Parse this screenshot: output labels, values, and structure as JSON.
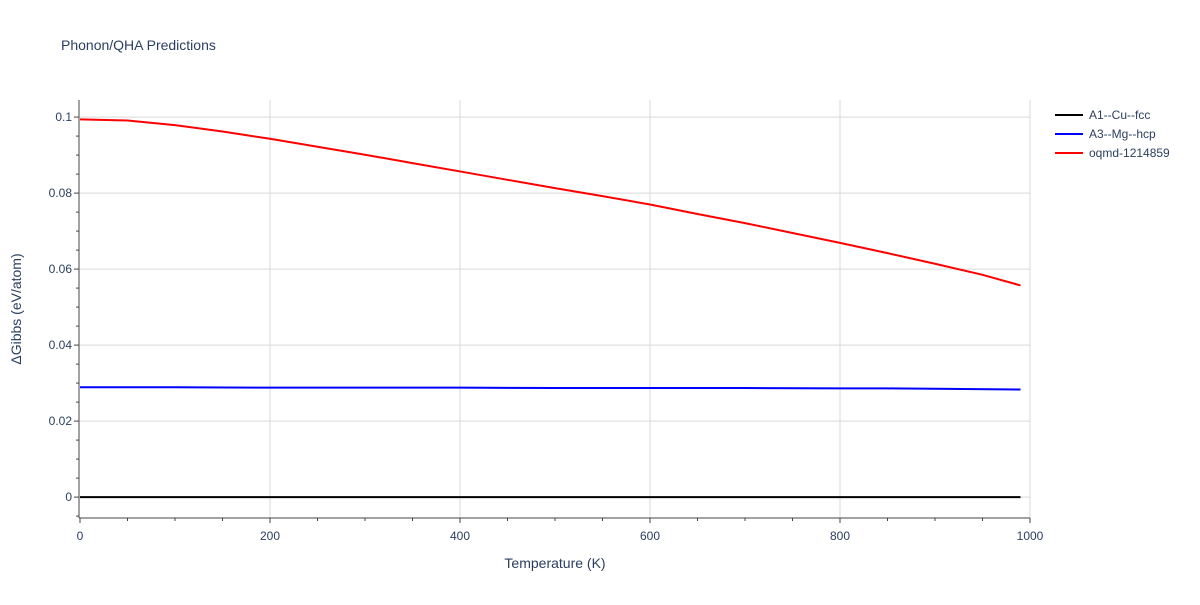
{
  "chart_data": {
    "type": "line",
    "title": "Phonon/QHA Predictions",
    "xlabel": "Temperature (K)",
    "ylabel": "ΔGibbs (eV/atom)",
    "xlim": [
      0,
      1000
    ],
    "ylim": [
      -0.0055,
      0.1045
    ],
    "x_ticks": [
      0,
      200,
      400,
      600,
      800,
      1000
    ],
    "x_tick_labels": [
      "0",
      "200",
      "400",
      "600",
      "800",
      "1000"
    ],
    "y_ticks": [
      0,
      0.02,
      0.04,
      0.06,
      0.08,
      0.1
    ],
    "y_tick_labels": [
      "0",
      "0.02",
      "0.04",
      "0.06",
      "0.08",
      "0.1"
    ],
    "grid": true,
    "legend_position": "top-right",
    "series": [
      {
        "name": "A1--Cu--fcc",
        "color": "#000000",
        "x": [
          0,
          990
        ],
        "y": [
          0,
          0
        ]
      },
      {
        "name": "A3--Mg--hcp",
        "color": "#0000ff",
        "x": [
          0,
          100,
          200,
          300,
          400,
          500,
          600,
          700,
          800,
          850,
          900,
          990
        ],
        "y": [
          0.0289,
          0.0289,
          0.0288,
          0.0288,
          0.0288,
          0.0287,
          0.0287,
          0.0287,
          0.0286,
          0.0286,
          0.0285,
          0.0283
        ]
      },
      {
        "name": "oqmd-1214859",
        "color": "#ff0000",
        "x": [
          0,
          50,
          100,
          150,
          200,
          250,
          300,
          350,
          400,
          450,
          500,
          550,
          600,
          650,
          700,
          750,
          800,
          850,
          900,
          950,
          990
        ],
        "y": [
          0.0994,
          0.0991,
          0.0979,
          0.0962,
          0.0943,
          0.0922,
          0.0901,
          0.0879,
          0.0857,
          0.0835,
          0.0813,
          0.0792,
          0.077,
          0.0745,
          0.0721,
          0.0695,
          0.0669,
          0.0642,
          0.0614,
          0.0585,
          0.0557
        ]
      }
    ]
  }
}
